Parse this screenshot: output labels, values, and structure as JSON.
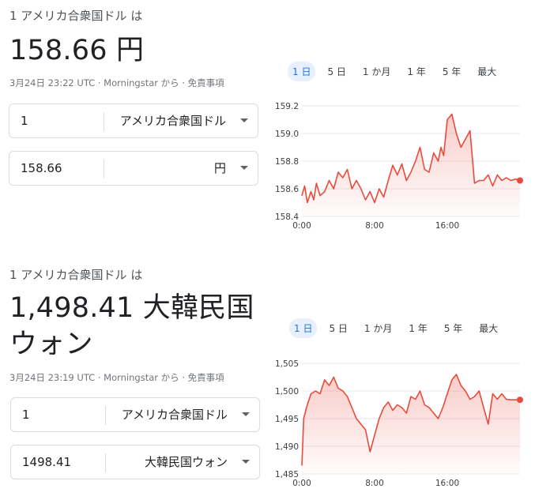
{
  "widgets": [
    {
      "heading": "1 アメリカ合衆国ドル は",
      "result": "158.66 円",
      "meta": {
        "timestamp": "3月24日 23:22 UTC",
        "source": "Morningstar から",
        "disclaimer": "免責事項"
      },
      "from": {
        "value": "1",
        "currency": "アメリカ合衆国ドル"
      },
      "to": {
        "value": "158.66",
        "currency": "円"
      },
      "tabs": [
        "1 日",
        "5 日",
        "1 か月",
        "1 年",
        "5 年",
        "最大"
      ],
      "active_tab": 0
    },
    {
      "heading": "1 アメリカ合衆国ドル は",
      "result_line1": "1,498.41 大韓民国",
      "result_line2": "ウォン",
      "meta": {
        "timestamp": "3月24日 23:19 UTC",
        "source": "Morningstar から",
        "disclaimer": "免責事項"
      },
      "from": {
        "value": "1",
        "currency": "アメリカ合衆国ドル"
      },
      "to": {
        "value": "1498.41",
        "currency": "大韓民国ウォン"
      },
      "tabs": [
        "1 日",
        "5 日",
        "1 か月",
        "1 年",
        "5 年",
        "最大"
      ],
      "active_tab": 0
    }
  ],
  "colors": {
    "line": "#e84a3c",
    "accent": "#1a73e8",
    "grid": "#e8eaed"
  },
  "chart_data": [
    {
      "type": "line",
      "ylim": [
        158.4,
        159.2
      ],
      "yticks": [
        "159.2",
        "159.0",
        "158.8",
        "158.6",
        "158.4"
      ],
      "ytick_values": [
        159.2,
        159.0,
        158.8,
        158.6,
        158.4
      ],
      "xticks": [
        "0:00",
        "8:00",
        "16:00"
      ],
      "xtick_values": [
        0,
        8,
        16
      ],
      "xlim": [
        0,
        24
      ],
      "x": [
        0,
        0.3,
        0.6,
        1,
        1.3,
        1.6,
        2,
        2.5,
        3,
        3.5,
        4,
        4.5,
        5,
        5.5,
        6,
        6.5,
        7,
        7.5,
        8,
        8.5,
        9,
        9.5,
        10,
        10.5,
        11,
        11.5,
        12,
        12.5,
        13,
        13.5,
        14,
        14.5,
        15,
        15.3,
        15.6,
        16,
        16.5,
        17,
        17.5,
        18,
        18.5,
        19,
        19.5,
        20,
        20.5,
        21,
        21.5,
        22,
        22.5,
        23,
        23.5,
        24
      ],
      "y": [
        158.55,
        158.62,
        158.5,
        158.58,
        158.52,
        158.64,
        158.55,
        158.58,
        158.66,
        158.6,
        158.72,
        158.68,
        158.74,
        158.6,
        158.66,
        158.6,
        158.52,
        158.58,
        158.5,
        158.6,
        158.54,
        158.66,
        158.77,
        158.7,
        158.78,
        158.66,
        158.72,
        158.8,
        158.9,
        158.74,
        158.72,
        158.86,
        158.8,
        158.9,
        158.84,
        159.1,
        159.14,
        159.0,
        158.9,
        158.96,
        159.02,
        158.64,
        158.66,
        158.66,
        158.7,
        158.62,
        158.7,
        158.66,
        158.68,
        158.66,
        158.67,
        158.66
      ],
      "end_marker": true
    },
    {
      "type": "line",
      "ylim": [
        1485,
        1505
      ],
      "yticks": [
        "1,505",
        "1,500",
        "1,495",
        "1,490",
        "1,485"
      ],
      "ytick_values": [
        1505,
        1500,
        1495,
        1490,
        1485
      ],
      "xticks": [
        "0:00",
        "8:00",
        "16:00"
      ],
      "xtick_values": [
        0,
        8,
        16
      ],
      "xlim": [
        0,
        24
      ],
      "x": [
        0,
        0.2,
        0.5,
        1,
        1.5,
        2,
        2.5,
        3,
        3.5,
        4,
        4.5,
        5,
        5.5,
        6,
        6.5,
        7,
        7.5,
        8,
        8.5,
        9,
        9.5,
        10,
        10.5,
        11,
        11.5,
        12,
        12.5,
        13,
        13.5,
        14,
        14.5,
        15,
        15.5,
        16,
        16.5,
        17,
        17.5,
        18,
        18.5,
        19,
        19.5,
        20,
        20.5,
        21,
        21.5,
        22,
        22.5,
        23,
        23.5,
        24
      ],
      "y": [
        1486.5,
        1495,
        1497,
        1499.5,
        1500,
        1499.5,
        1502,
        1501,
        1502.5,
        1500.5,
        1500,
        1499,
        1497,
        1495,
        1494,
        1493,
        1489,
        1492,
        1495,
        1497,
        1498,
        1496.5,
        1497.5,
        1497,
        1496,
        1499,
        1498.5,
        1500,
        1497.5,
        1497,
        1496,
        1495,
        1497,
        1499.5,
        1502,
        1503,
        1501,
        1500,
        1498.5,
        1499,
        1500,
        1497,
        1494,
        1499.5,
        1498.5,
        1499.5,
        1498.5,
        1498.4,
        1498.4,
        1498.41
      ],
      "end_marker": true
    }
  ]
}
